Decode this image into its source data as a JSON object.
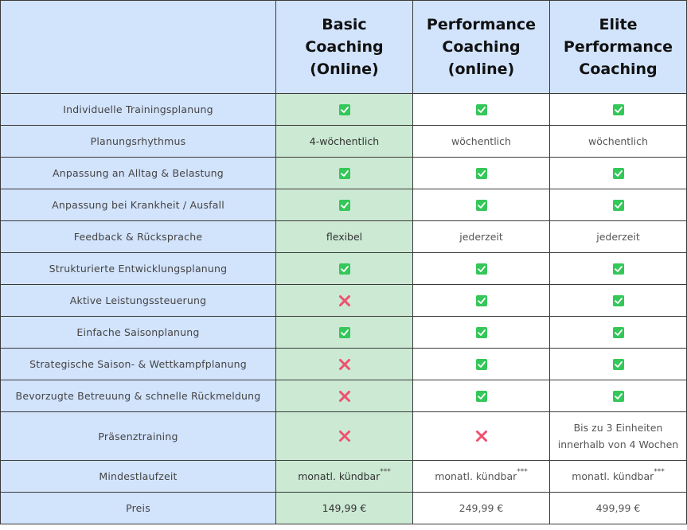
{
  "headers": [
    "",
    "Basic\nCoaching\n(Online)",
    "Performance\nCoaching\n(online)",
    "Elite\nPerformance\nCoaching"
  ],
  "colors": {
    "header_bg": "#d2e3fc",
    "basic_bg": "#cbe9d3",
    "check": "#34c759",
    "cross": "#f0506e"
  },
  "rows": [
    {
      "feature": "Individuelle Trainingsplanung",
      "cells": [
        {
          "type": "check"
        },
        {
          "type": "check"
        },
        {
          "type": "check"
        }
      ]
    },
    {
      "feature": "Planungsrhythmus",
      "cells": [
        {
          "type": "text",
          "value": "4-wöchentlich"
        },
        {
          "type": "text",
          "value": "wöchentlich"
        },
        {
          "type": "text",
          "value": "wöchentlich"
        }
      ]
    },
    {
      "feature": "Anpassung an Alltag & Belastung",
      "cells": [
        {
          "type": "check"
        },
        {
          "type": "check"
        },
        {
          "type": "check"
        }
      ]
    },
    {
      "feature": "Anpassung bei Krankheit / Ausfall",
      "cells": [
        {
          "type": "check"
        },
        {
          "type": "check"
        },
        {
          "type": "check"
        }
      ]
    },
    {
      "feature": "Feedback & Rücksprache",
      "cells": [
        {
          "type": "text",
          "value": "flexibel"
        },
        {
          "type": "text",
          "value": "jederzeit"
        },
        {
          "type": "text",
          "value": "jederzeit"
        }
      ]
    },
    {
      "feature": "Strukturierte Entwicklungsplanung",
      "cells": [
        {
          "type": "check"
        },
        {
          "type": "check"
        },
        {
          "type": "check"
        }
      ]
    },
    {
      "feature": "Aktive Leistungssteuerung",
      "cells": [
        {
          "type": "cross"
        },
        {
          "type": "check"
        },
        {
          "type": "check"
        }
      ]
    },
    {
      "feature": "Einfache Saisonplanung",
      "cells": [
        {
          "type": "check"
        },
        {
          "type": "check"
        },
        {
          "type": "check"
        }
      ]
    },
    {
      "feature": "Strategische Saison- & Wettkampfplanung",
      "cells": [
        {
          "type": "cross"
        },
        {
          "type": "check"
        },
        {
          "type": "check"
        }
      ]
    },
    {
      "feature": "Bevorzugte Betreuung & schnelle Rückmeldung",
      "cells": [
        {
          "type": "cross"
        },
        {
          "type": "check"
        },
        {
          "type": "check"
        }
      ]
    },
    {
      "feature": "Präsenztraining",
      "tall": true,
      "cells": [
        {
          "type": "cross"
        },
        {
          "type": "cross"
        },
        {
          "type": "text",
          "value": "Bis zu 3 Einheiten\ninnerhalb von 4 Wochen"
        }
      ]
    },
    {
      "feature": "Mindestlaufzeit",
      "cells": [
        {
          "type": "text",
          "value": "monatl. kündbar",
          "sup": "***"
        },
        {
          "type": "text",
          "value": "monatl. kündbar",
          "sup": "***"
        },
        {
          "type": "text",
          "value": "monatl. kündbar",
          "sup": "***"
        }
      ]
    },
    {
      "feature": "Preis",
      "cells": [
        {
          "type": "text",
          "value": "149,99 €"
        },
        {
          "type": "text",
          "value": "249,99 €"
        },
        {
          "type": "text",
          "value": "499,99 €"
        }
      ]
    }
  ]
}
